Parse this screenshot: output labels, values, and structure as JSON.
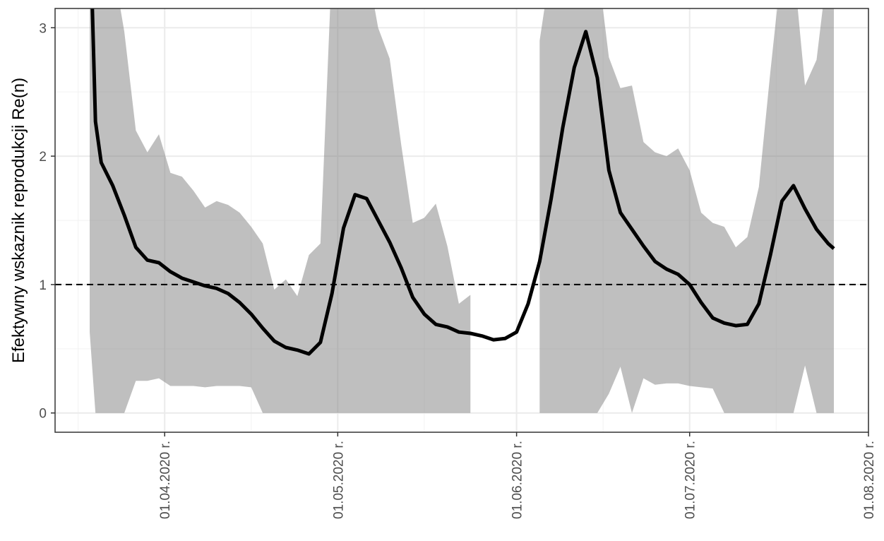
{
  "chart_data": {
    "type": "line_band",
    "ylabel": "Efektywny wskaznik reprodukcji Re(n)",
    "x": [
      "2020-03-19",
      "2020-03-20",
      "2020-03-21",
      "2020-03-23",
      "2020-03-25",
      "2020-03-27",
      "2020-03-29",
      "2020-03-31",
      "2020-04-02",
      "2020-04-04",
      "2020-04-06",
      "2020-04-08",
      "2020-04-10",
      "2020-04-12",
      "2020-04-14",
      "2020-04-16",
      "2020-04-18",
      "2020-04-20",
      "2020-04-22",
      "2020-04-24",
      "2020-04-26",
      "2020-04-28",
      "2020-04-30",
      "2020-05-02",
      "2020-05-04",
      "2020-05-06",
      "2020-05-08",
      "2020-05-10",
      "2020-05-12",
      "2020-05-14",
      "2020-05-16",
      "2020-05-18",
      "2020-05-20",
      "2020-05-22",
      "2020-05-24",
      "2020-05-26",
      "2020-05-28",
      "2020-05-30",
      "2020-06-01",
      "2020-06-03",
      "2020-06-05",
      "2020-06-07",
      "2020-06-09",
      "2020-06-11",
      "2020-06-13",
      "2020-06-15",
      "2020-06-17",
      "2020-06-19",
      "2020-06-21",
      "2020-06-23",
      "2020-06-25",
      "2020-06-27",
      "2020-06-29",
      "2020-07-01",
      "2020-07-03",
      "2020-07-05",
      "2020-07-07",
      "2020-07-09",
      "2020-07-11",
      "2020-07-13",
      "2020-07-15",
      "2020-07-17",
      "2020-07-19",
      "2020-07-21",
      "2020-07-23",
      "2020-07-25",
      "2020-07-26"
    ],
    "values": [
      3.9,
      2.27,
      1.95,
      1.77,
      1.54,
      1.29,
      1.19,
      1.17,
      1.1,
      1.05,
      1.02,
      0.99,
      0.97,
      0.93,
      0.86,
      0.77,
      0.66,
      0.56,
      0.51,
      0.49,
      0.46,
      0.55,
      0.93,
      1.44,
      1.7,
      1.67,
      1.5,
      1.33,
      1.13,
      0.9,
      0.77,
      0.69,
      0.67,
      0.63,
      0.62,
      0.6,
      0.57,
      0.58,
      0.63,
      0.85,
      1.18,
      1.67,
      2.22,
      2.69,
      2.97,
      2.61,
      1.89,
      1.56,
      1.43,
      1.3,
      1.18,
      1.12,
      1.08,
      1.0,
      0.86,
      0.74,
      0.7,
      0.68,
      0.69,
      0.85,
      1.23,
      1.65,
      1.77,
      1.59,
      1.43,
      1.32,
      1.28
    ],
    "band_upper": [
      3.5,
      3.5,
      3.5,
      3.5,
      2.97,
      2.2,
      2.03,
      2.17,
      1.87,
      1.84,
      1.73,
      1.6,
      1.65,
      1.62,
      1.56,
      1.45,
      1.32,
      0.96,
      1.04,
      0.91,
      1.23,
      1.32,
      3.5,
      3.5,
      3.5,
      3.5,
      3.0,
      2.76,
      2.09,
      1.48,
      1.52,
      1.63,
      1.3,
      0.85,
      0.92,
      null,
      null,
      null,
      null,
      null,
      2.9,
      3.5,
      3.5,
      3.5,
      3.5,
      3.5,
      2.77,
      2.53,
      2.55,
      2.11,
      2.03,
      2.0,
      2.06,
      1.89,
      1.56,
      1.48,
      1.45,
      1.29,
      1.37,
      1.76,
      2.66,
      3.5,
      3.5,
      2.55,
      2.75,
      3.5,
      3.5
    ],
    "band_lower": [
      0.63,
      0,
      0,
      0,
      0,
      0.25,
      0.25,
      0.27,
      0.21,
      0.21,
      0.21,
      0.2,
      0.21,
      0.21,
      0.21,
      0.2,
      0,
      0,
      0,
      0,
      0,
      0,
      0,
      0,
      0,
      0,
      0,
      0,
      0,
      0,
      0,
      0,
      0,
      0,
      0,
      null,
      null,
      null,
      null,
      null,
      0,
      0,
      0,
      0,
      0,
      0,
      0.15,
      0.36,
      0,
      0.27,
      0.22,
      0.23,
      0.23,
      0.21,
      0.2,
      0.19,
      0,
      0,
      0,
      0,
      0,
      0,
      0,
      0.37,
      0,
      0,
      0
    ],
    "color": "#000000",
    "band_color": "#808080",
    "band_opacity": 0.5,
    "reference_line": 1,
    "xlim": [
      "2020-03-13",
      "2020-08-01"
    ],
    "xticks": [
      {
        "value": "2020-04-01",
        "label": "01.04.2020 r."
      },
      {
        "value": "2020-05-01",
        "label": "01.05.2020 r."
      },
      {
        "value": "2020-06-01",
        "label": "01.06.2020 r."
      },
      {
        "value": "2020-07-01",
        "label": "01.07.2020 r."
      },
      {
        "value": "2020-08-01",
        "label": "01.08.2020 r."
      }
    ],
    "xminor": [
      "2020-03-17",
      "2020-04-16",
      "2020-05-16",
      "2020-06-16",
      "2020-07-16"
    ],
    "ylim": [
      -0.15,
      3.15
    ],
    "yticks": [
      0,
      1,
      2,
      3
    ],
    "yminor": [
      0.5,
      1.5,
      2.5
    ],
    "grid": true
  }
}
